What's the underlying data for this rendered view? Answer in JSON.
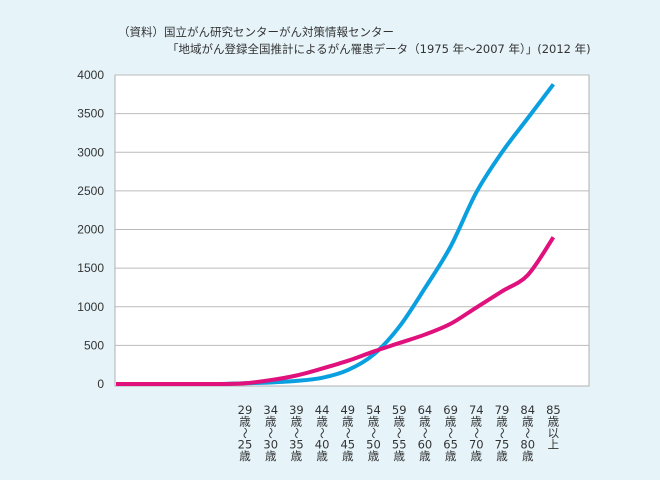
{
  "source": {
    "line1": "（資料）国立がん研究センターがん対策情報センター",
    "line2": "「地域がん登録全国推計によるがん罹患データ（1975 年〜2007 年）」(2012 年)"
  },
  "chart_data": {
    "type": "line",
    "title": "",
    "xlabel": "",
    "ylabel": "",
    "ylim": [
      0,
      4000
    ],
    "yticks": [
      0,
      500,
      1000,
      1500,
      2000,
      2500,
      3000,
      3500,
      4000
    ],
    "grid": true,
    "legend": "none",
    "categories": [
      "",
      "",
      "",
      "",
      "",
      "29歳〜25歳",
      "34歳〜30歳",
      "39歳〜35歳",
      "44歳〜40歳",
      "49歳〜45歳",
      "54歳〜50歳",
      "59歳〜55歳",
      "64歳〜60歳",
      "69歳〜65歳",
      "74歳〜70歳",
      "79歳〜75歳",
      "84歳〜80歳",
      "85歳以上"
    ],
    "category_labels": [
      null,
      null,
      null,
      null,
      null,
      [
        "29",
        "歳",
        "〜",
        "25",
        "歳"
      ],
      [
        "34",
        "歳",
        "〜",
        "30",
        "歳"
      ],
      [
        "39",
        "歳",
        "〜",
        "35",
        "歳"
      ],
      [
        "44",
        "歳",
        "〜",
        "40",
        "歳"
      ],
      [
        "49",
        "歳",
        "〜",
        "45",
        "歳"
      ],
      [
        "54",
        "歳",
        "〜",
        "50",
        "歳"
      ],
      [
        "59",
        "歳",
        "〜",
        "55",
        "歳"
      ],
      [
        "64",
        "歳",
        "〜",
        "60",
        "歳"
      ],
      [
        "69",
        "歳",
        "〜",
        "65",
        "歳"
      ],
      [
        "74",
        "歳",
        "〜",
        "70",
        "歳"
      ],
      [
        "79",
        "歳",
        "〜",
        "75",
        "歳"
      ],
      [
        "84",
        "歳",
        "〜",
        "80",
        "歳"
      ],
      [
        "85",
        "歳",
        "以",
        "上"
      ]
    ],
    "series": [
      {
        "color": "#0aa0e0",
        "values": [
          0,
          0,
          0,
          0,
          0,
          10,
          20,
          40,
          80,
          180,
          380,
          740,
          1240,
          1780,
          2480,
          3000,
          3440,
          3880
        ]
      },
      {
        "color": "#e0107c",
        "values": [
          0,
          0,
          0,
          0,
          0,
          10,
          50,
          110,
          200,
          300,
          420,
          530,
          640,
          780,
          990,
          1200,
          1410,
          1900
        ]
      }
    ]
  },
  "colors": {
    "background": "#e6f4fa",
    "plot_background": "#ffffff",
    "grid": "#bbbbbb"
  }
}
